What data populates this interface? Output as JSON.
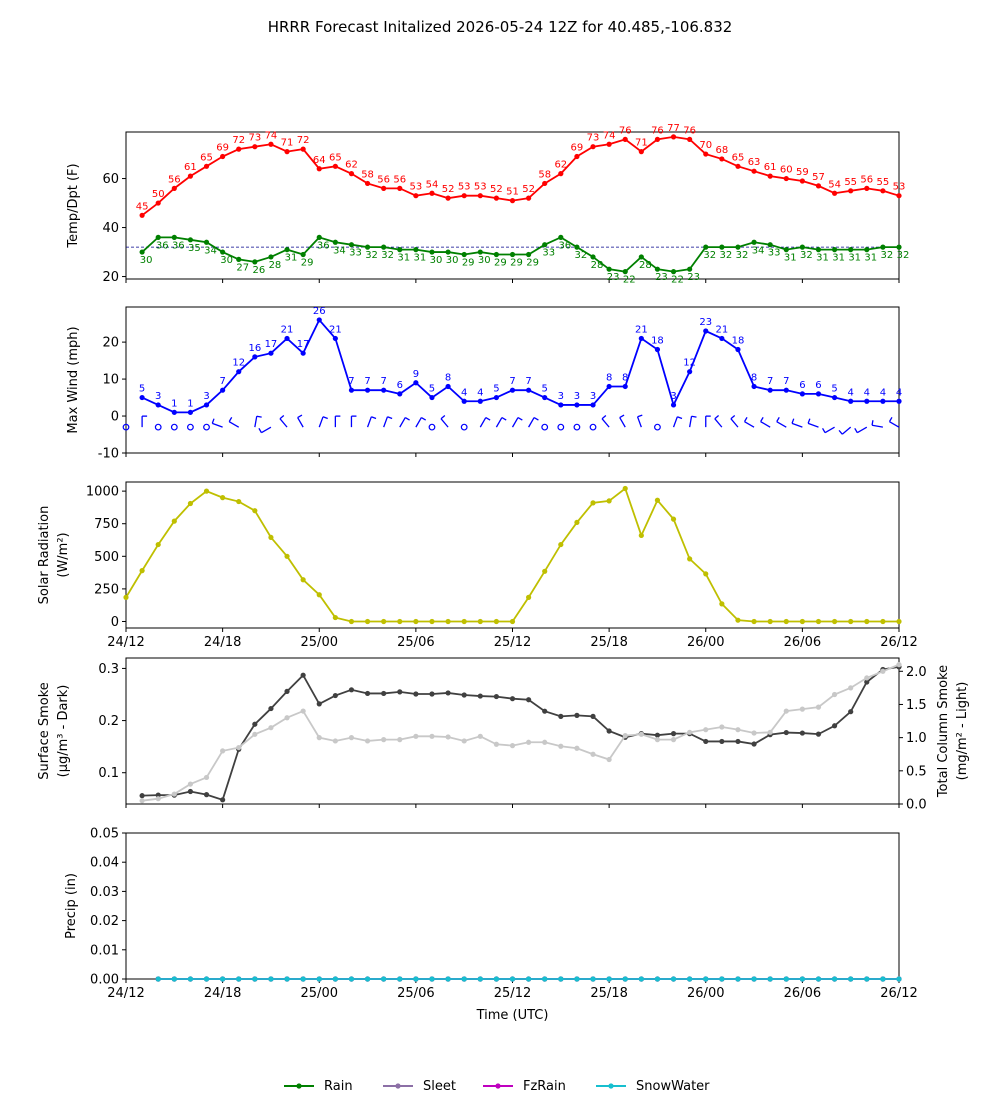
{
  "title": "HRRR Forecast Initalized 2026-05-24 12Z for 40.485,-106.832",
  "colors": {
    "temp": "#ff0000",
    "dewpoint": "#008000",
    "wind": "#0000ff",
    "solar": "#bfbf00",
    "smoke_surface": "#404040",
    "smoke_column": "#c8c8c8",
    "rain": "#008000",
    "sleet": "#8c6fa6",
    "fzrain": "#bf00bf",
    "snowwater": "#17bfcf"
  },
  "chart_data": [
    {
      "type": "line",
      "name": "temperature-dewpoint",
      "ylabel": "Temp/Dpt (F)",
      "ylim": [
        19,
        79
      ],
      "yticks": [
        20,
        40,
        60
      ],
      "xlim": [
        0,
        48
      ],
      "reference_line": 32,
      "x_start": 1,
      "x_step": 1,
      "series": [
        {
          "key": "temp",
          "values": [
            45,
            50,
            56,
            61,
            65,
            69,
            72,
            73,
            74,
            71,
            72,
            64,
            65,
            62,
            58,
            56,
            56,
            53,
            54,
            52,
            53,
            53,
            52,
            51,
            52,
            58,
            62,
            69,
            73,
            74,
            76,
            71,
            76,
            77,
            76,
            70,
            68,
            65,
            63,
            61,
            60,
            59,
            57,
            54,
            55,
            56,
            55,
            53
          ]
        },
        {
          "key": "dewpoint",
          "values": [
            30,
            36,
            36,
            35,
            34,
            30,
            27,
            26,
            28,
            31,
            29,
            36,
            34,
            33,
            32,
            32,
            31,
            31,
            30,
            30,
            29,
            30,
            29,
            29,
            29,
            33,
            36,
            32,
            28,
            23,
            22,
            28,
            23,
            22,
            23,
            32,
            32,
            32,
            34,
            33,
            31,
            32,
            31,
            31,
            31,
            31,
            32,
            32
          ]
        }
      ]
    },
    {
      "type": "line",
      "name": "max-wind",
      "ylabel": "Max Wind (mph)",
      "ylim": [
        -10,
        29.5
      ],
      "yticks": [
        -10,
        0,
        10,
        20
      ],
      "xlim": [
        0,
        48
      ],
      "x_start": 1,
      "x_step": 1,
      "series": [
        {
          "key": "wind",
          "values": [
            5,
            3,
            1,
            1,
            3,
            7,
            12,
            16,
            17,
            21,
            17,
            26,
            21,
            7,
            7,
            7,
            6,
            9,
            5,
            8,
            4,
            4,
            5,
            7,
            7,
            5,
            3,
            3,
            3,
            8,
            8,
            21,
            18,
            3,
            12,
            23,
            21,
            18,
            8,
            7,
            7,
            6,
            6,
            5,
            4,
            4,
            4,
            4
          ]
        }
      ]
    },
    {
      "type": "line",
      "name": "solar-radiation",
      "ylabel": "Solar Radiation",
      "ylabel2": "(W/m²)",
      "ylim": [
        -50,
        1070
      ],
      "yticks": [
        0,
        250,
        500,
        750,
        1000
      ],
      "xlim": [
        0,
        48
      ],
      "x_start": 0,
      "x_step": 1,
      "series": [
        {
          "key": "solar",
          "values": [
            185,
            390,
            590,
            770,
            905,
            1000,
            950,
            920,
            850,
            645,
            500,
            320,
            205,
            30,
            0,
            0,
            0,
            0,
            0,
            0,
            0,
            0,
            0,
            0,
            0,
            185,
            385,
            590,
            760,
            910,
            925,
            1020,
            660,
            930,
            785,
            480,
            365,
            135,
            10,
            0,
            0,
            0,
            0,
            0,
            0,
            0,
            0,
            0,
            0
          ]
        }
      ]
    },
    {
      "type": "line",
      "name": "smoke",
      "ylabel": "Surface Smoke",
      "ylabel_units": "(μg/m³ - Dark)",
      "ylabel_right": "Total Column Smoke",
      "ylabel_right_units": "(mg/m² - Light)",
      "ylim": [
        0.04,
        0.32
      ],
      "yticks": [
        0.1,
        0.2,
        0.3
      ],
      "ylim_right": [
        0,
        2.2
      ],
      "yticks_right": [
        "0.0",
        "0.5",
        "1.0",
        "1.5",
        "2.0"
      ],
      "xlim": [
        0,
        48
      ],
      "x_start": 1,
      "x_step": 1,
      "series": [
        {
          "key": "smoke_surface",
          "values": [
            0.056,
            0.057,
            0.057,
            0.064,
            0.058,
            0.048,
            0.145,
            0.193,
            0.223,
            0.256,
            0.287,
            0.232,
            0.248,
            0.259,
            0.252,
            0.252,
            0.255,
            0.251,
            0.251,
            0.253,
            0.249,
            0.247,
            0.246,
            0.242,
            0.24,
            0.218,
            0.208,
            0.21,
            0.208,
            0.18,
            0.168,
            0.175,
            0.172,
            0.175,
            0.175,
            0.16,
            0.16,
            0.16,
            0.155,
            0.173,
            0.177,
            0.176,
            0.174,
            0.19,
            0.217,
            0.274,
            0.298,
            0.303
          ]
        },
        {
          "key": "smoke_column",
          "values": [
            0.05,
            0.08,
            0.15,
            0.3,
            0.4,
            0.8,
            0.85,
            1.05,
            1.15,
            1.3,
            1.4,
            1.0,
            0.95,
            1.0,
            0.95,
            0.97,
            0.97,
            1.02,
            1.02,
            1.01,
            0.95,
            1.02,
            0.9,
            0.88,
            0.93,
            0.93,
            0.87,
            0.84,
            0.75,
            0.67,
            1.03,
            1.05,
            0.97,
            0.97,
            1.08,
            1.12,
            1.16,
            1.12,
            1.07,
            1.08,
            1.4,
            1.43,
            1.46,
            1.65,
            1.75,
            1.9,
            2.0,
            2.1
          ]
        }
      ]
    },
    {
      "type": "line",
      "name": "precipitation",
      "ylabel": "Precip (in)",
      "ylim": [
        0,
        0.05
      ],
      "yticks": [
        "0.00",
        "0.01",
        "0.02",
        "0.03",
        "0.04",
        "0.05"
      ],
      "xlim": [
        0,
        48
      ],
      "xlabel": "Time (UTC)",
      "x_start": 2,
      "x_step": 1,
      "series": [
        {
          "key": "rain",
          "name": "Rain",
          "values": [
            0,
            0,
            0,
            0,
            0,
            0,
            0,
            0,
            0,
            0,
            0,
            0,
            0,
            0,
            0,
            0,
            0,
            0,
            0,
            0,
            0,
            0,
            0,
            0,
            0,
            0,
            0,
            0,
            0,
            0,
            0,
            0,
            0,
            0,
            0,
            0,
            0,
            0,
            0,
            0,
            0,
            0,
            0,
            0,
            0,
            0,
            0
          ]
        },
        {
          "key": "sleet",
          "name": "Sleet",
          "values": [
            0,
            0,
            0,
            0,
            0,
            0,
            0,
            0,
            0,
            0,
            0,
            0,
            0,
            0,
            0,
            0,
            0,
            0,
            0,
            0,
            0,
            0,
            0,
            0,
            0,
            0,
            0,
            0,
            0,
            0,
            0,
            0,
            0,
            0,
            0,
            0,
            0,
            0,
            0,
            0,
            0,
            0,
            0,
            0,
            0,
            0,
            0
          ]
        },
        {
          "key": "fzrain",
          "name": "FzRain",
          "values": [
            0,
            0,
            0,
            0,
            0,
            0,
            0,
            0,
            0,
            0,
            0,
            0,
            0,
            0,
            0,
            0,
            0,
            0,
            0,
            0,
            0,
            0,
            0,
            0,
            0,
            0,
            0,
            0,
            0,
            0,
            0,
            0,
            0,
            0,
            0,
            0,
            0,
            0,
            0,
            0,
            0,
            0,
            0,
            0,
            0,
            0,
            0
          ]
        },
        {
          "key": "snowwater",
          "name": "SnowWater",
          "values": [
            0,
            0,
            0,
            0,
            0,
            0,
            0,
            0,
            0,
            0,
            0,
            0,
            0,
            0,
            0,
            0,
            0,
            0,
            0,
            0,
            0,
            0,
            0,
            0,
            0,
            0,
            0,
            0,
            0,
            0,
            0,
            0,
            0,
            0,
            0,
            0,
            0,
            0,
            0,
            0,
            0,
            0,
            0,
            0,
            0,
            0,
            0
          ]
        }
      ]
    }
  ],
  "x_ticks": {
    "values": [
      0,
      6,
      12,
      18,
      24,
      30,
      36,
      42,
      48
    ],
    "labels": [
      "24/12",
      "24/18",
      "25/00",
      "25/06",
      "25/12",
      "25/18",
      "26/00",
      "26/06",
      "26/12"
    ]
  },
  "wind_barbs": {
    "x_start": 0,
    "calm": [
      true,
      false,
      true,
      true,
      true,
      true,
      false,
      false,
      false,
      false,
      false,
      false,
      false,
      false,
      false,
      false,
      false,
      false,
      false,
      true,
      false,
      true,
      false,
      false,
      false,
      false,
      true,
      true,
      true,
      true,
      false,
      false,
      false,
      true,
      false,
      false,
      false,
      false,
      false,
      false,
      false,
      false,
      false,
      false,
      false,
      false,
      false,
      false,
      false
    ],
    "direction_deg": [
      240,
      0,
      0,
      0,
      0,
      0,
      290,
      300,
      10,
      240,
      320,
      330,
      20,
      0,
      0,
      20,
      20,
      30,
      30,
      0,
      320,
      0,
      30,
      30,
      30,
      30,
      0,
      0,
      0,
      0,
      320,
      330,
      340,
      0,
      20,
      10,
      0,
      320,
      320,
      300,
      300,
      300,
      290,
      290,
      240,
      230,
      240,
      280,
      300
    ]
  },
  "legend": [
    {
      "key": "rain",
      "label": "Rain"
    },
    {
      "key": "sleet",
      "label": "Sleet"
    },
    {
      "key": "fzrain",
      "label": "FzRain"
    },
    {
      "key": "snowwater",
      "label": "SnowWater"
    }
  ]
}
